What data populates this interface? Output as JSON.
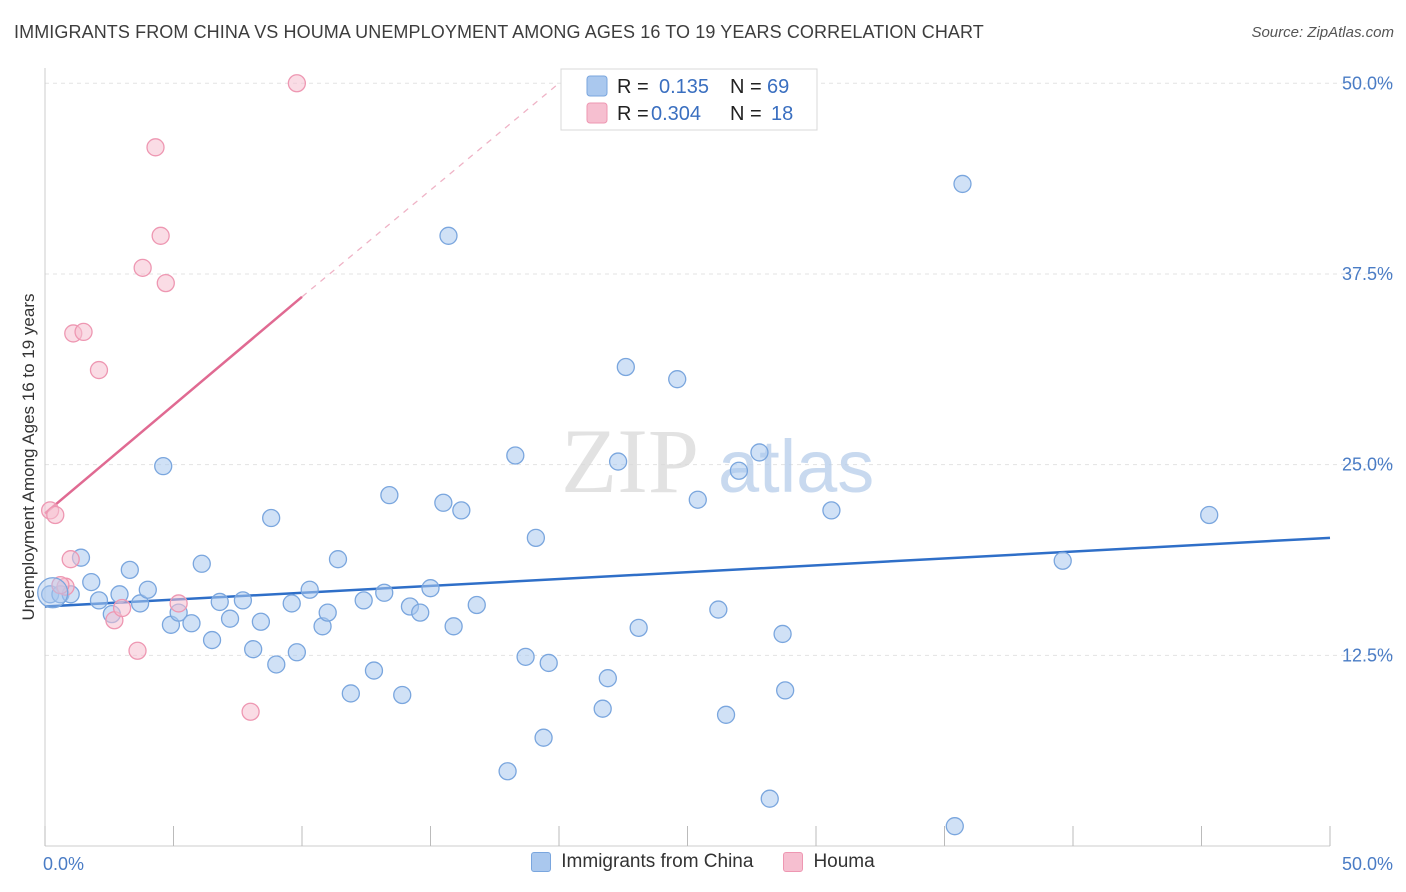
{
  "title": "IMMIGRANTS FROM CHINA VS HOUMA UNEMPLOYMENT AMONG AGES 16 TO 19 YEARS CORRELATION CHART",
  "source": "Source: ZipAtlas.com",
  "watermark": {
    "zip": "ZIP",
    "atlas": "atlas"
  },
  "colors": {
    "blue_fill": "#aac8ee",
    "blue_stroke": "#7aa6de",
    "blue_line": "#2f6fc8",
    "pink_fill": "#f6bfd0",
    "pink_stroke": "#ee97b2",
    "pink_line": "#e06a92"
  },
  "legend": {
    "r_label": "R =",
    "n_label": "N =",
    "rows": [
      {
        "series": "Immigrants from China",
        "r": "0.135",
        "n": "69"
      },
      {
        "series": "Houma",
        "r": "0.304",
        "n": "18"
      }
    ]
  },
  "chart_data": {
    "type": "scatter",
    "title": "IMMIGRANTS FROM CHINA VS HOUMA UNEMPLOYMENT AMONG AGES 16 TO 19 YEARS CORRELATION CHART",
    "xlabel": "",
    "ylabel": "Unemployment Among Ages 16 to 19 years",
    "xlim": [
      0,
      50
    ],
    "ylim": [
      0,
      51
    ],
    "x_tick_labels": [
      "0.0%",
      "50.0%"
    ],
    "y_ticks": [
      12.5,
      25.0,
      37.5,
      50.0
    ],
    "y_tick_labels": [
      "12.5%",
      "25.0%",
      "37.5%",
      "50.0%"
    ],
    "grid": true,
    "legend_position": "top-center",
    "series": [
      {
        "name": "Immigrants from China",
        "points": [
          [
            0.2,
            16.5
          ],
          [
            0.6,
            16.5
          ],
          [
            1.0,
            16.5
          ],
          [
            1.4,
            18.9
          ],
          [
            1.8,
            17.3
          ],
          [
            2.1,
            16.1
          ],
          [
            2.6,
            15.2
          ],
          [
            2.9,
            16.5
          ],
          [
            3.3,
            18.1
          ],
          [
            3.7,
            15.9
          ],
          [
            4.0,
            16.8
          ],
          [
            4.6,
            24.9
          ],
          [
            4.9,
            14.5
          ],
          [
            5.2,
            15.3
          ],
          [
            5.7,
            14.6
          ],
          [
            6.1,
            18.5
          ],
          [
            6.5,
            13.5
          ],
          [
            6.8,
            16.0
          ],
          [
            7.2,
            14.9
          ],
          [
            7.7,
            16.1
          ],
          [
            8.1,
            12.9
          ],
          [
            8.4,
            14.7
          ],
          [
            8.8,
            21.5
          ],
          [
            9.0,
            11.9
          ],
          [
            9.6,
            15.9
          ],
          [
            9.8,
            12.7
          ],
          [
            10.3,
            16.8
          ],
          [
            10.8,
            14.4
          ],
          [
            11.0,
            15.3
          ],
          [
            11.4,
            18.8
          ],
          [
            11.9,
            10.0
          ],
          [
            12.4,
            16.1
          ],
          [
            12.8,
            11.5
          ],
          [
            13.2,
            16.6
          ],
          [
            13.4,
            23.0
          ],
          [
            13.9,
            9.9
          ],
          [
            14.2,
            15.7
          ],
          [
            14.6,
            15.3
          ],
          [
            15.0,
            16.9
          ],
          [
            15.5,
            22.5
          ],
          [
            15.9,
            14.4
          ],
          [
            16.2,
            22.0
          ],
          [
            16.8,
            15.8
          ],
          [
            18.0,
            4.9
          ],
          [
            18.3,
            25.6
          ],
          [
            18.7,
            12.4
          ],
          [
            19.1,
            20.2
          ],
          [
            19.4,
            7.1
          ],
          [
            19.6,
            12.0
          ],
          [
            21.7,
            9.0
          ],
          [
            21.9,
            11.0
          ],
          [
            22.3,
            25.2
          ],
          [
            22.6,
            31.4
          ],
          [
            23.1,
            14.3
          ],
          [
            24.6,
            30.6
          ],
          [
            25.4,
            22.7
          ],
          [
            26.2,
            15.5
          ],
          [
            26.5,
            8.6
          ],
          [
            27.0,
            24.6
          ],
          [
            27.8,
            25.8
          ],
          [
            28.2,
            3.1
          ],
          [
            28.7,
            13.9
          ],
          [
            28.8,
            10.2
          ],
          [
            30.6,
            22.0
          ],
          [
            35.4,
            1.3
          ],
          [
            35.7,
            43.4
          ],
          [
            39.6,
            18.7
          ],
          [
            45.3,
            21.7
          ],
          [
            15.7,
            40.0
          ]
        ]
      },
      {
        "name": "Houma",
        "points": [
          [
            0.2,
            22.0
          ],
          [
            0.4,
            21.7
          ],
          [
            0.8,
            17.0
          ],
          [
            1.0,
            18.8
          ],
          [
            1.1,
            33.6
          ],
          [
            1.5,
            33.7
          ],
          [
            2.1,
            31.2
          ],
          [
            2.7,
            14.8
          ],
          [
            3.0,
            15.6
          ],
          [
            3.6,
            12.8
          ],
          [
            3.8,
            37.9
          ],
          [
            4.3,
            45.8
          ],
          [
            4.5,
            40.0
          ],
          [
            4.7,
            36.9
          ],
          [
            5.2,
            15.9
          ],
          [
            8.0,
            8.8
          ],
          [
            9.8,
            50.0
          ],
          [
            0.6,
            17.1
          ]
        ]
      }
    ],
    "trendlines": [
      {
        "series": "Immigrants from China",
        "x": [
          0,
          50
        ],
        "y": [
          15.7,
          20.2
        ]
      },
      {
        "series": "Houma",
        "x": [
          0,
          10
        ],
        "y": [
          21.8,
          36.0
        ],
        "dashed_extension_to": [
          20,
          50.0
        ]
      }
    ]
  }
}
